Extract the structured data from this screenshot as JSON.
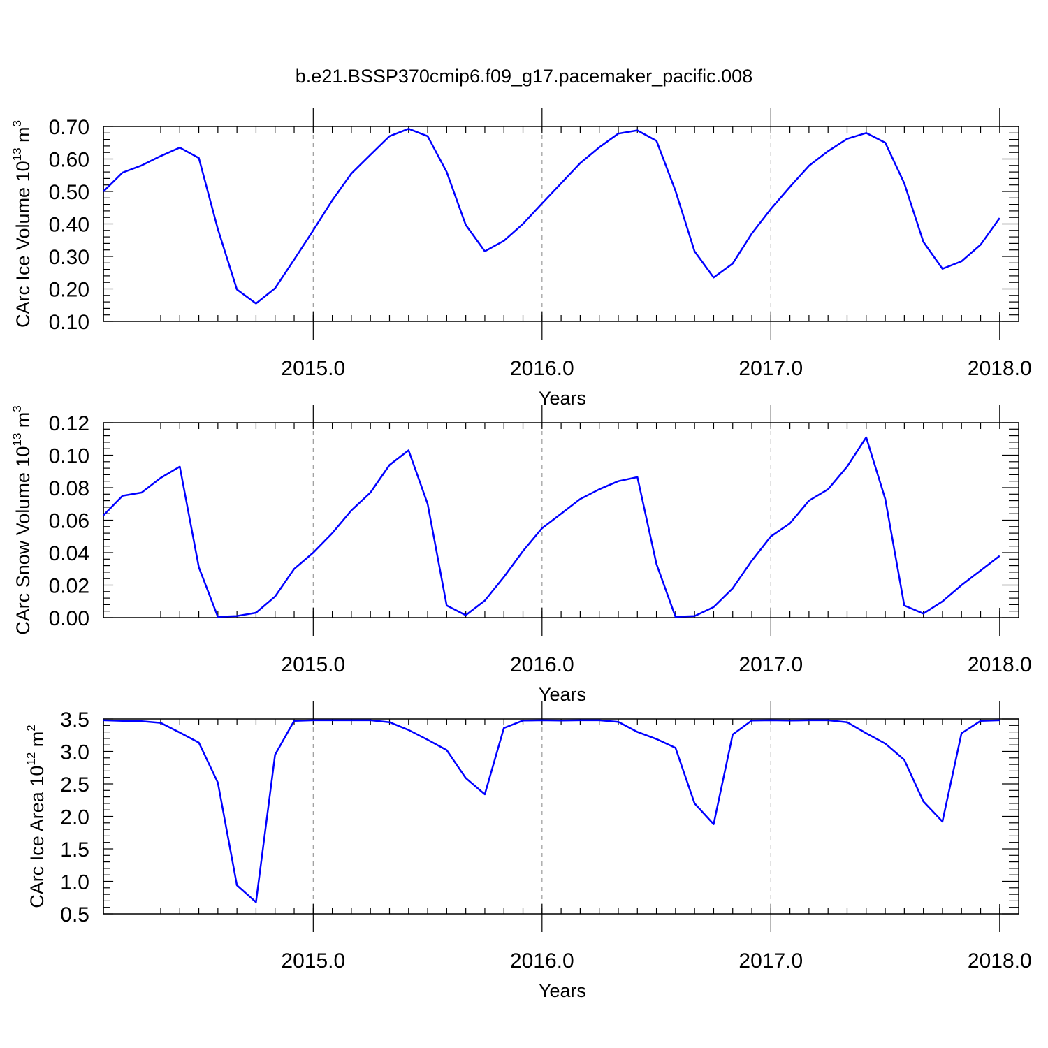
{
  "title": "b.e21.BSSP370cmip6.f09_g17.pacemaker_pacific.008",
  "chart_data": [
    {
      "type": "line",
      "ylabel_main": "CArc Ice Volume 10",
      "ylabel_exp": "13",
      "ylabel_unit": " m",
      "ylabel_unit_exp": "3",
      "xlabel": "Years",
      "xlim": [
        2014.083,
        2018.083
      ],
      "ylim": [
        0.1,
        0.7
      ],
      "yticks": [
        0.1,
        0.2,
        0.3,
        0.4,
        0.5,
        0.6,
        0.7
      ],
      "ytick_labels": [
        "0.10",
        "0.20",
        "0.30",
        "0.40",
        "0.50",
        "0.60",
        "0.70"
      ],
      "xticks": [
        2015,
        2016,
        2017,
        2018
      ],
      "xtick_labels": [
        "2015.0",
        "2016.0",
        "2017.0",
        "2018.0"
      ],
      "grid": "vertical dashed at major x ticks",
      "color": "#0000ff",
      "x_start": 2014.0833,
      "x_step": 0.0833333,
      "values": [
        0.5,
        0.558,
        0.58,
        0.609,
        0.635,
        0.603,
        0.384,
        0.198,
        0.155,
        0.202,
        0.29,
        0.38,
        0.473,
        0.555,
        0.613,
        0.67,
        0.693,
        0.67,
        0.56,
        0.397,
        0.316,
        0.348,
        0.4,
        0.463,
        0.525,
        0.587,
        0.636,
        0.678,
        0.688,
        0.656,
        0.502,
        0.316,
        0.235,
        0.278,
        0.37,
        0.446,
        0.514,
        0.579,
        0.624,
        0.662,
        0.68,
        0.65,
        0.525,
        0.345,
        0.262,
        0.285,
        0.336,
        0.418
      ]
    },
    {
      "type": "line",
      "ylabel_main": "CArc Snow Volume 10",
      "ylabel_exp": "13",
      "ylabel_unit": " m",
      "ylabel_unit_exp": "3",
      "xlabel": "Years",
      "xlim": [
        2014.083,
        2018.083
      ],
      "ylim": [
        0.0,
        0.12
      ],
      "yticks": [
        0.0,
        0.02,
        0.04,
        0.06,
        0.08,
        0.1,
        0.12
      ],
      "ytick_labels": [
        "0.00",
        "0.02",
        "0.04",
        "0.06",
        "0.08",
        "0.10",
        "0.12"
      ],
      "xticks": [
        2015,
        2016,
        2017,
        2018
      ],
      "xtick_labels": [
        "2015.0",
        "2016.0",
        "2017.0",
        "2018.0"
      ],
      "grid": "vertical dashed at major x ticks",
      "color": "#0000ff",
      "x_start": 2014.0833,
      "x_step": 0.0833333,
      "values": [
        0.063,
        0.075,
        0.077,
        0.086,
        0.093,
        0.031,
        0.0005,
        0.001,
        0.003,
        0.013,
        0.03,
        0.04,
        0.052,
        0.066,
        0.077,
        0.094,
        0.103,
        0.07,
        0.0075,
        0.0015,
        0.0105,
        0.025,
        0.041,
        0.055,
        0.064,
        0.073,
        0.079,
        0.084,
        0.0865,
        0.033,
        0.0005,
        0.001,
        0.0065,
        0.018,
        0.035,
        0.05,
        0.058,
        0.072,
        0.079,
        0.093,
        0.111,
        0.073,
        0.0075,
        0.0025,
        0.01,
        0.02,
        0.029,
        0.038
      ]
    },
    {
      "type": "line",
      "ylabel_main": "CArc Ice Area 10",
      "ylabel_exp": "12",
      "ylabel_unit": " m",
      "ylabel_unit_exp": "2",
      "xlabel": "Years",
      "xlim": [
        2014.083,
        2018.083
      ],
      "ylim": [
        0.5,
        3.5
      ],
      "yticks": [
        0.5,
        1.0,
        1.5,
        2.0,
        2.5,
        3.0,
        3.5
      ],
      "ytick_labels": [
        "0.5",
        "1.0",
        "1.5",
        "2.0",
        "2.5",
        "3.0",
        "3.5"
      ],
      "xticks": [
        2015,
        2016,
        2017,
        2018
      ],
      "xtick_labels": [
        "2015.0",
        "2016.0",
        "2017.0",
        "2018.0"
      ],
      "grid": "vertical dashed at major x ticks",
      "color": "#0000ff",
      "x_start": 2014.0833,
      "x_step": 0.0833333,
      "values": [
        3.48,
        3.47,
        3.465,
        3.44,
        3.29,
        3.135,
        2.52,
        0.94,
        0.68,
        2.95,
        3.47,
        3.48,
        3.48,
        3.48,
        3.48,
        3.45,
        3.33,
        3.18,
        3.02,
        2.59,
        2.34,
        3.36,
        3.475,
        3.48,
        3.475,
        3.48,
        3.48,
        3.455,
        3.3,
        3.19,
        3.055,
        2.2,
        1.88,
        3.26,
        3.475,
        3.48,
        3.475,
        3.48,
        3.48,
        3.45,
        3.28,
        3.12,
        2.87,
        2.23,
        1.92,
        3.28,
        3.47,
        3.48
      ]
    }
  ]
}
